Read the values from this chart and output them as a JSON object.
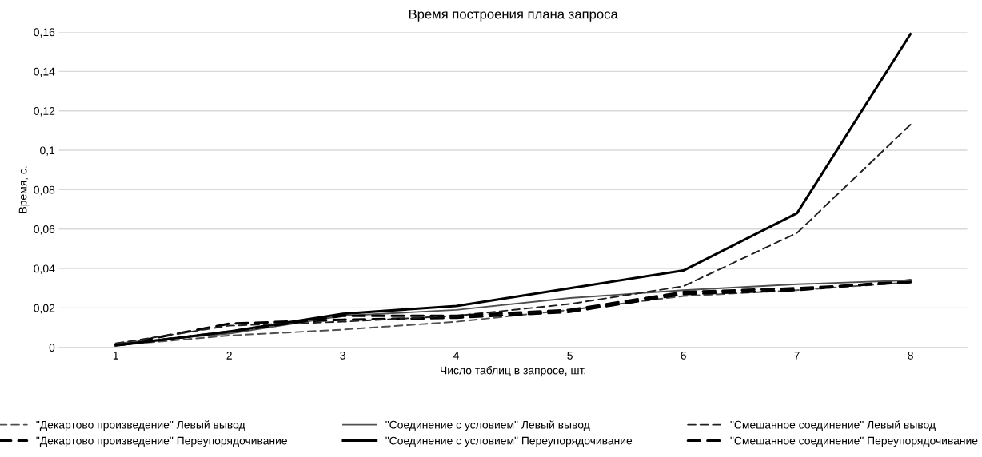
{
  "chart_data": {
    "type": "line",
    "title": "Время построения плана запроса",
    "xlabel": "Число таблиц в запросе, шт.",
    "ylabel": "Время, с.",
    "categories": [
      "1",
      "2",
      "3",
      "4",
      "5",
      "6",
      "7",
      "8"
    ],
    "series": [
      {
        "name": "\"Декартово произведение\" Левый вывод",
        "color": "#505050",
        "line_style": "dashed",
        "values": [
          0.001,
          0.006,
          0.009,
          0.013,
          0.019,
          0.026,
          0.029,
          0.033
        ]
      },
      {
        "name": "\"Декартово произведение\" Переупорядочивание",
        "color": "#000000",
        "line_style": "dashed",
        "values": [
          0.001,
          0.012,
          0.014,
          0.015,
          0.018,
          0.027,
          0.029,
          0.034
        ]
      },
      {
        "name": "\"Соединение с условием\" Левый вывод",
        "color": "#505050",
        "line_style": "solid",
        "values": [
          0.002,
          0.007,
          0.016,
          0.019,
          0.025,
          0.029,
          0.032,
          0.034
        ]
      },
      {
        "name": "\"Соединение с условием\" Переупорядочивание",
        "color": "#000000",
        "line_style": "solid",
        "values": [
          0.001,
          0.008,
          0.017,
          0.021,
          0.03,
          0.039,
          0.068,
          0.159
        ]
      },
      {
        "name": "\"Смешанное соединение\" Левый вывод",
        "color": "#202020",
        "line_style": "dashed",
        "values": [
          0.002,
          0.011,
          0.013,
          0.016,
          0.022,
          0.031,
          0.058,
          0.113
        ]
      },
      {
        "name": "\"Смешанное соединение\" Переупорядочивание",
        "color": "#000000",
        "line_style": "dashed",
        "values": [
          0.001,
          0.008,
          0.016,
          0.016,
          0.019,
          0.028,
          0.03,
          0.033
        ]
      }
    ],
    "ylim": [
      0,
      0.16
    ],
    "yticks": [
      0,
      {
        "value": 0.02,
        "label": "0,02"
      },
      {
        "value": 0.04,
        "label": "0,04"
      },
      {
        "value": 0.06,
        "label": "0,06"
      },
      {
        "value": 0.08,
        "label": "0,08"
      },
      {
        "value": 0.1,
        "label": "0,1"
      },
      {
        "value": 0.12,
        "label": "0,12"
      },
      {
        "value": 0.14,
        "label": "0,14"
      },
      {
        "value": 0.16,
        "label": "0,16"
      }
    ],
    "grid": "y",
    "legend": "bottom",
    "marker": "none"
  }
}
